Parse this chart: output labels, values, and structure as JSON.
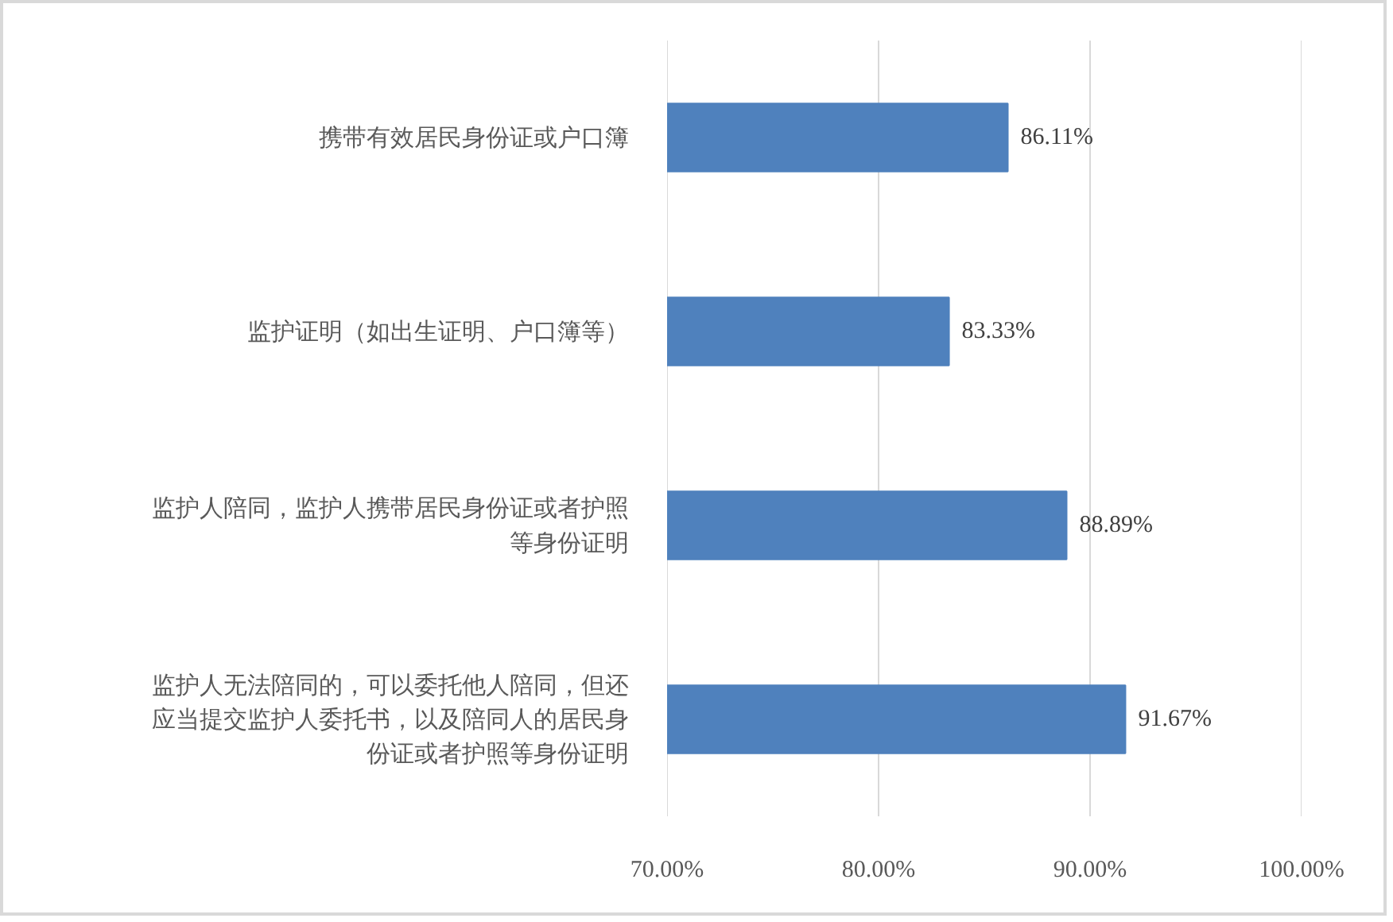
{
  "chart_data": {
    "type": "bar",
    "orientation": "horizontal",
    "categories": [
      "携带有效居民身份证或户口簿",
      "监护证明（如出生证明、户口簿等）",
      "监护人陪同，监护人携带居民身份证或者护照等身份证明",
      "监护人无法陪同的，可以委托他人陪同，但还应当提交监护人委托书，以及陪同人的居民身份证或者护照等身份证明"
    ],
    "values": [
      86.11,
      83.33,
      88.89,
      91.67
    ],
    "color": "#4f81bd",
    "value_labels": [
      "86.11%",
      "83.33%",
      "88.89%",
      "91.67%"
    ],
    "xlim": [
      70,
      100
    ],
    "xticks": [
      {
        "value": 70,
        "label": "70.00%"
      },
      {
        "value": 80,
        "label": "80.00%"
      },
      {
        "value": 90,
        "label": "90.00%"
      },
      {
        "value": 100,
        "label": "100.00%"
      }
    ],
    "grid": "x"
  }
}
